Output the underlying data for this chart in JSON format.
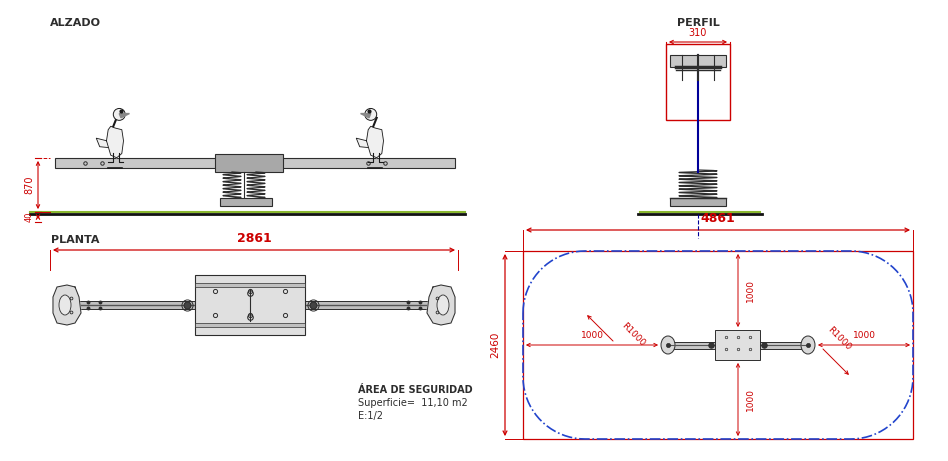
{
  "bg_color": "#ffffff",
  "line_color": "#2d2d2d",
  "red_color": "#cc0000",
  "blue_color": "#000099",
  "green_color": "#8ab830",
  "dash_blue": "#2244cc",
  "labels": {
    "alzado": "ALZADO",
    "perfil": "PERFIL",
    "planta": "PLANTA",
    "area": "ÁREA DE SEGURIDAD",
    "superficie": "Superficie=  11,10 m2",
    "escala": "E:1/2"
  },
  "dimensions": {
    "d870": "870",
    "d40": "40",
    "d310": "310",
    "d2861": "2861",
    "d4861": "4861",
    "d2460": "2460",
    "d1000": "1000",
    "r1000": "R1000"
  }
}
